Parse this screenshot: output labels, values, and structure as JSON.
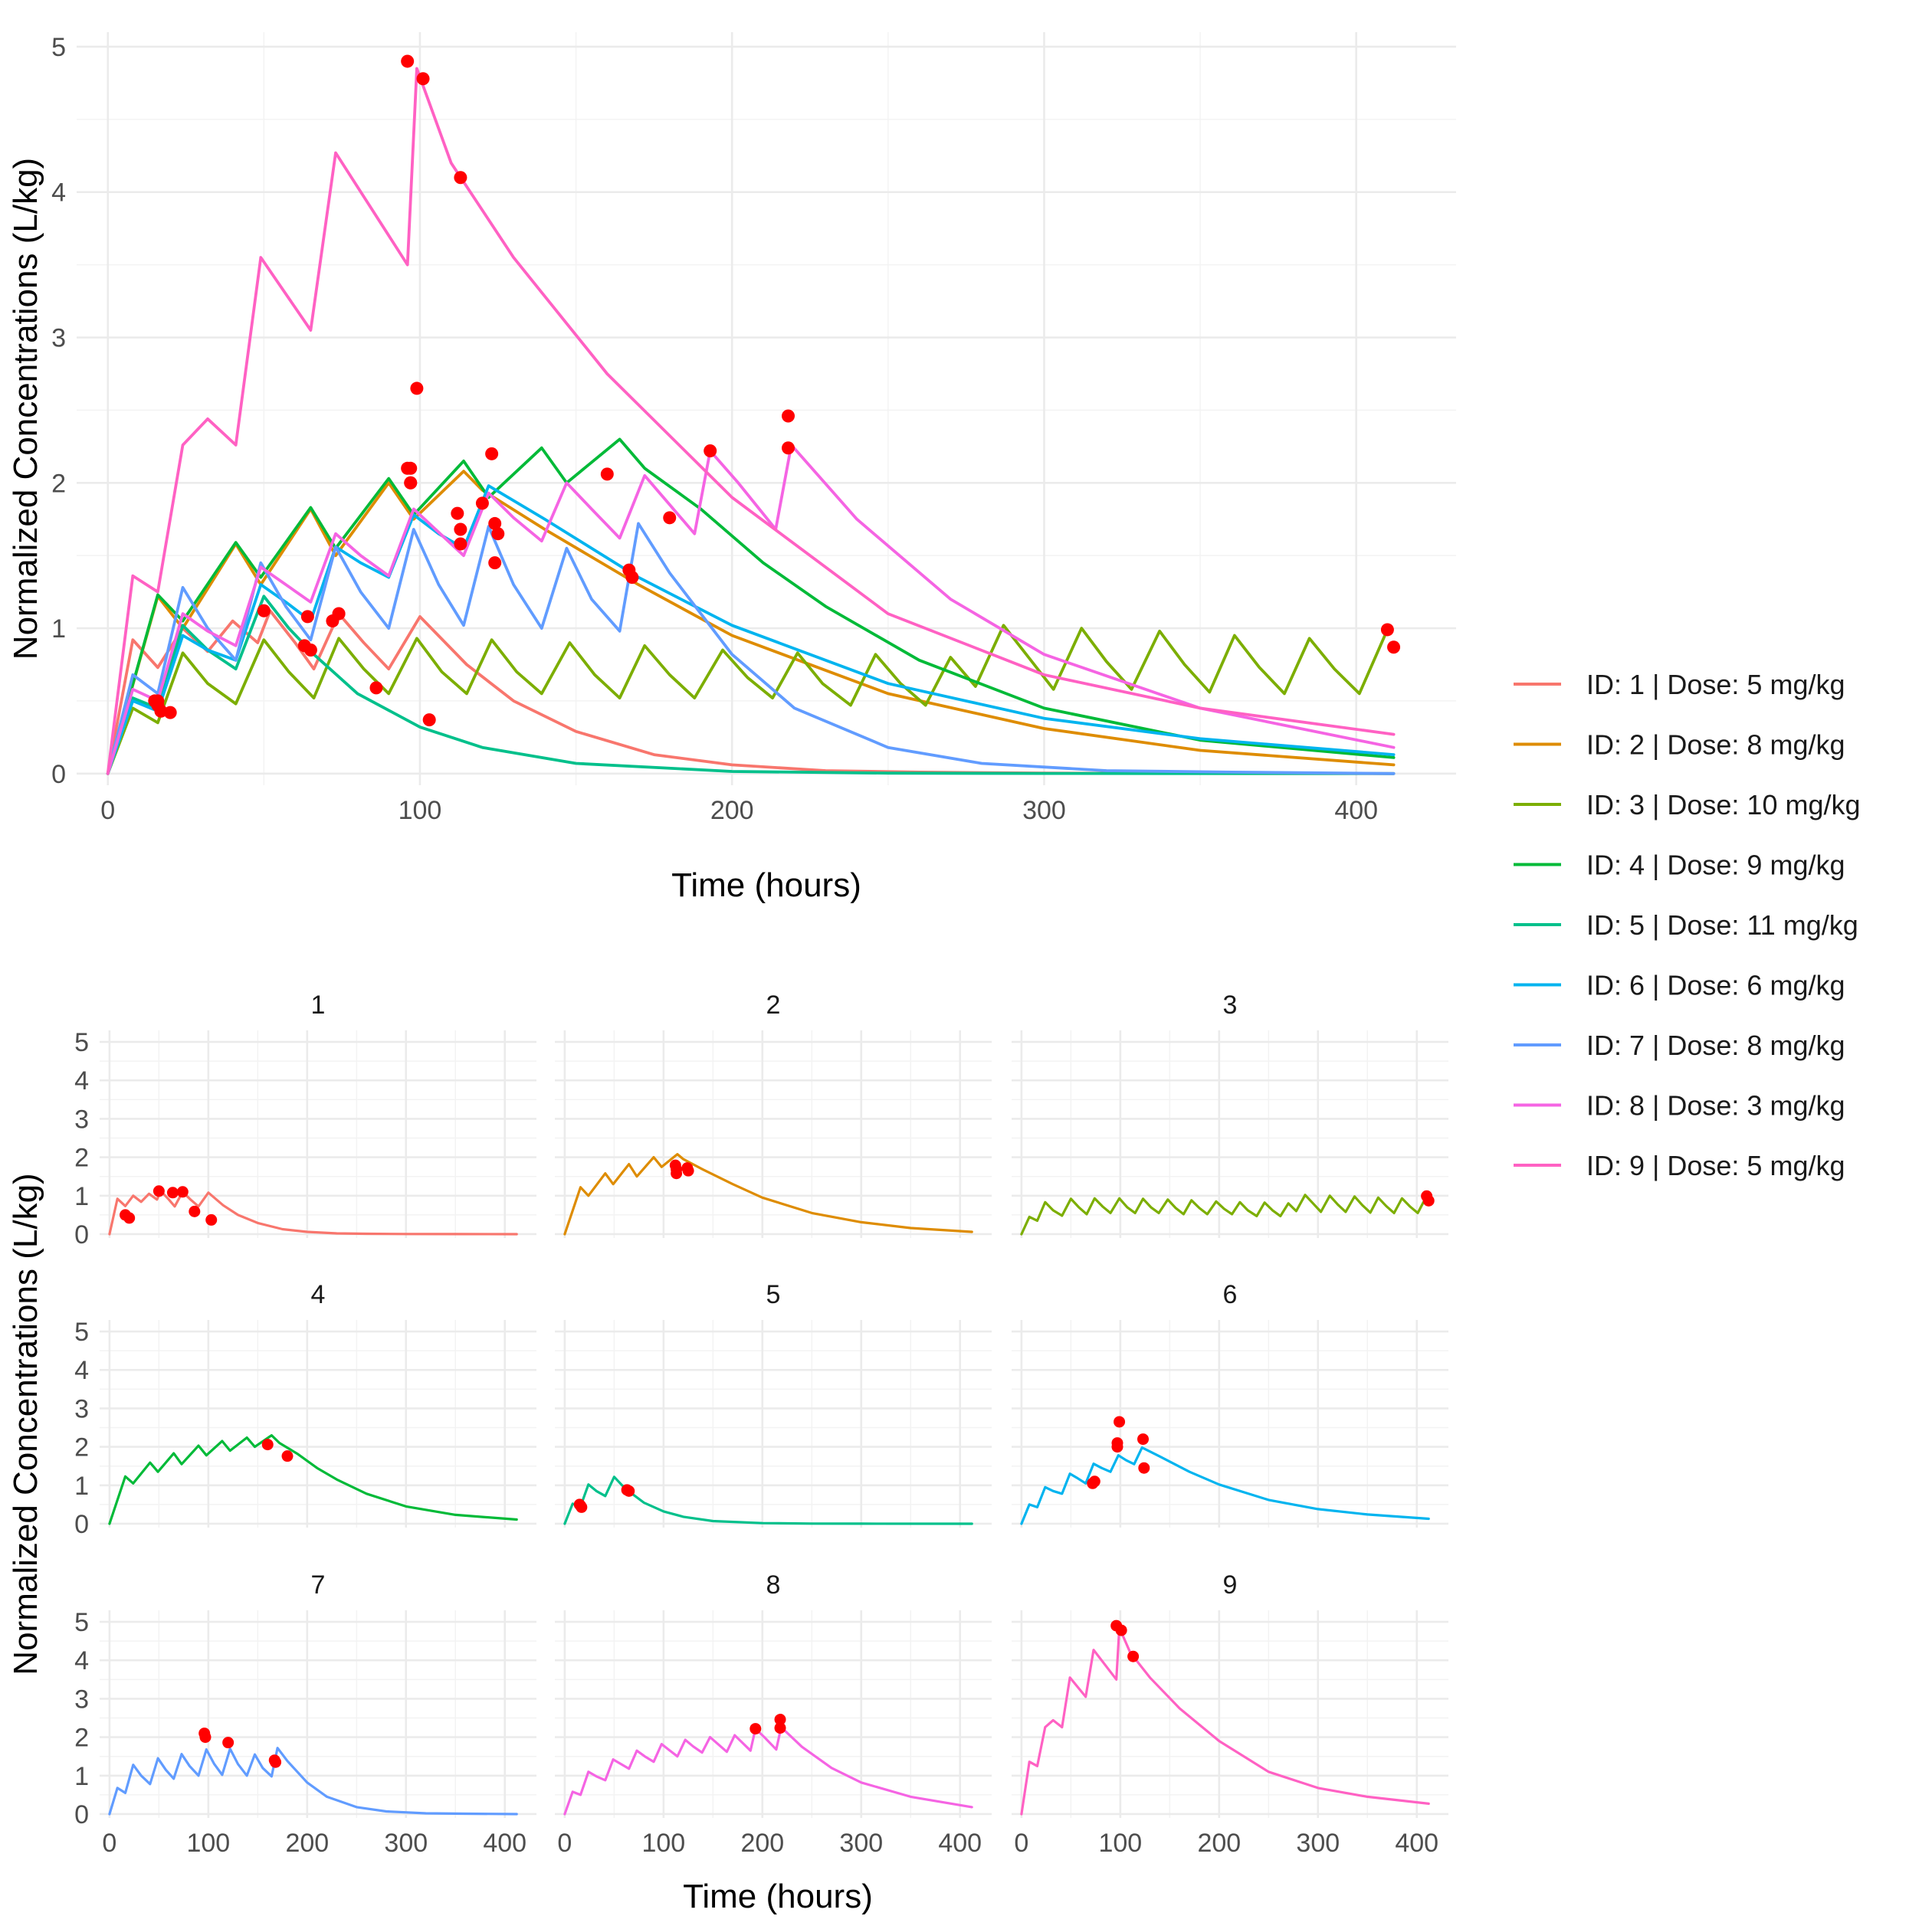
{
  "chart_data": {
    "type": "line",
    "description_free": true,
    "top_panel": {
      "xlabel": "Time (hours)",
      "ylabel": "Normalized Concentrations (L/kg)",
      "xlim": [
        -10,
        432
      ],
      "ylim": [
        -0.08,
        5.1
      ],
      "xticks": [
        0,
        100,
        200,
        300,
        400
      ],
      "yticks": [
        0,
        1,
        2,
        3,
        4,
        5
      ]
    },
    "facet_panels": {
      "xlabel": "Time (hours)",
      "ylabel": "Normalized Concentrations (L/kg)",
      "xlim": [
        -10,
        432
      ],
      "ylim": [
        -0.1,
        5.3
      ],
      "xticks": [
        0,
        100,
        200,
        300,
        400
      ],
      "yticks": [
        0,
        1,
        2,
        3,
        4,
        5
      ],
      "strip_labels": [
        "1",
        "2",
        "3",
        "4",
        "5",
        "6",
        "7",
        "8",
        "9"
      ]
    },
    "observed_point_color": "#FF0000",
    "series": [
      {
        "id": "1",
        "name": "ID: 1 | Dose: 5 mg/kg",
        "color": "#F8766D",
        "line": [
          [
            0,
            0
          ],
          [
            8,
            0.92
          ],
          [
            16,
            0.73
          ],
          [
            24,
            1.0
          ],
          [
            32,
            0.84
          ],
          [
            40,
            1.05
          ],
          [
            48,
            0.9
          ],
          [
            52,
            1.12
          ],
          [
            60,
            0.9
          ],
          [
            66,
            0.72
          ],
          [
            74,
            1.1
          ],
          [
            82,
            0.9
          ],
          [
            90,
            0.72
          ],
          [
            100,
            1.08
          ],
          [
            115,
            0.75
          ],
          [
            130,
            0.5
          ],
          [
            150,
            0.29
          ],
          [
            175,
            0.13
          ],
          [
            200,
            0.06
          ],
          [
            230,
            0.02
          ],
          [
            260,
            0.01
          ],
          [
            300,
            0.003
          ],
          [
            350,
            0.001
          ],
          [
            412,
            0.0
          ]
        ],
        "points": [
          [
            16,
            0.5
          ],
          [
            20,
            0.42
          ],
          [
            50,
            1.12
          ],
          [
            64,
            1.08
          ],
          [
            74,
            1.1
          ],
          [
            86,
            0.59
          ],
          [
            103,
            0.37
          ]
        ]
      },
      {
        "id": "2",
        "name": "ID: 2 | Dose: 8 mg/kg",
        "color": "#DE8C00",
        "line": [
          [
            0,
            0
          ],
          [
            16,
            1.22
          ],
          [
            24,
            1.0
          ],
          [
            41,
            1.58
          ],
          [
            49,
            1.3
          ],
          [
            65,
            1.82
          ],
          [
            73,
            1.5
          ],
          [
            90,
            2.0
          ],
          [
            98,
            1.75
          ],
          [
            114,
            2.08
          ],
          [
            120,
            1.95
          ],
          [
            140,
            1.68
          ],
          [
            170,
            1.3
          ],
          [
            200,
            0.95
          ],
          [
            250,
            0.55
          ],
          [
            300,
            0.31
          ],
          [
            350,
            0.16
          ],
          [
            412,
            0.06
          ]
        ],
        "points": [
          [
            112,
            1.79
          ],
          [
            113,
            1.68
          ],
          [
            113,
            1.58
          ],
          [
            124,
            1.72
          ],
          [
            125,
            1.65
          ]
        ]
      },
      {
        "id": "3",
        "name": "ID: 3 | Dose: 10 mg/kg",
        "color": "#7CAE00",
        "line": [
          [
            0,
            0
          ],
          [
            8,
            0.45
          ],
          [
            16,
            0.35
          ],
          [
            24,
            0.83
          ],
          [
            32,
            0.62
          ],
          [
            41,
            0.48
          ],
          [
            50,
            0.92
          ],
          [
            58,
            0.7
          ],
          [
            66,
            0.52
          ],
          [
            74,
            0.93
          ],
          [
            82,
            0.72
          ],
          [
            90,
            0.55
          ],
          [
            99,
            0.93
          ],
          [
            107,
            0.7
          ],
          [
            115,
            0.55
          ],
          [
            123,
            0.92
          ],
          [
            131,
            0.7
          ],
          [
            139,
            0.55
          ],
          [
            148,
            0.9
          ],
          [
            156,
            0.68
          ],
          [
            164,
            0.52
          ],
          [
            172,
            0.88
          ],
          [
            180,
            0.68
          ],
          [
            188,
            0.52
          ],
          [
            197,
            0.85
          ],
          [
            205,
            0.66
          ],
          [
            213,
            0.52
          ],
          [
            221,
            0.83
          ],
          [
            229,
            0.62
          ],
          [
            238,
            0.47
          ],
          [
            246,
            0.82
          ],
          [
            254,
            0.62
          ],
          [
            262,
            0.47
          ],
          [
            270,
            0.8
          ],
          [
            278,
            0.6
          ],
          [
            287,
            1.02
          ],
          [
            295,
            0.8
          ],
          [
            303,
            0.58
          ],
          [
            312,
            1.0
          ],
          [
            320,
            0.77
          ],
          [
            328,
            0.58
          ],
          [
            337,
            0.98
          ],
          [
            345,
            0.75
          ],
          [
            353,
            0.56
          ],
          [
            361,
            0.95
          ],
          [
            369,
            0.73
          ],
          [
            377,
            0.55
          ],
          [
            385,
            0.93
          ],
          [
            393,
            0.72
          ],
          [
            401,
            0.55
          ],
          [
            410,
            0.99
          ]
        ],
        "points": [
          [
            410,
            0.99
          ],
          [
            412,
            0.87
          ]
        ]
      },
      {
        "id": "4",
        "name": "ID: 4 | Dose: 9 mg/kg",
        "color": "#00BA38",
        "line": [
          [
            0,
            0
          ],
          [
            16,
            1.23
          ],
          [
            24,
            1.05
          ],
          [
            41,
            1.59
          ],
          [
            49,
            1.35
          ],
          [
            65,
            1.83
          ],
          [
            73,
            1.55
          ],
          [
            90,
            2.03
          ],
          [
            98,
            1.78
          ],
          [
            114,
            2.15
          ],
          [
            122,
            1.9
          ],
          [
            139,
            2.24
          ],
          [
            147,
            2.0
          ],
          [
            164,
            2.3
          ],
          [
            172,
            2.1
          ],
          [
            190,
            1.82
          ],
          [
            210,
            1.45
          ],
          [
            230,
            1.15
          ],
          [
            260,
            0.78
          ],
          [
            300,
            0.45
          ],
          [
            350,
            0.23
          ],
          [
            412,
            0.11
          ]
        ],
        "points": [
          [
            160,
            2.06
          ],
          [
            180,
            1.76
          ]
        ]
      },
      {
        "id": "5",
        "name": "ID: 5 | Dose: 11 mg/kg",
        "color": "#00C08B",
        "line": [
          [
            0,
            0
          ],
          [
            8,
            0.52
          ],
          [
            16,
            0.45
          ],
          [
            24,
            1.02
          ],
          [
            32,
            0.85
          ],
          [
            41,
            0.72
          ],
          [
            50,
            1.22
          ],
          [
            58,
            1.0
          ],
          [
            66,
            0.82
          ],
          [
            80,
            0.55
          ],
          [
            100,
            0.32
          ],
          [
            120,
            0.18
          ],
          [
            150,
            0.07
          ],
          [
            200,
            0.015
          ],
          [
            250,
            0.003
          ],
          [
            300,
            0.001
          ],
          [
            412,
            0.0
          ]
        ],
        "points": [
          [
            15,
            0.5
          ],
          [
            16,
            0.47
          ],
          [
            17,
            0.43
          ],
          [
            63,
            0.88
          ],
          [
            65,
            0.85
          ]
        ]
      },
      {
        "id": "6",
        "name": "ID: 6 | Dose: 6 mg/kg",
        "color": "#00B4EF",
        "line": [
          [
            0,
            0
          ],
          [
            8,
            0.5
          ],
          [
            16,
            0.43
          ],
          [
            24,
            0.95
          ],
          [
            32,
            0.85
          ],
          [
            41,
            0.78
          ],
          [
            49,
            1.3
          ],
          [
            57,
            1.18
          ],
          [
            65,
            1.05
          ],
          [
            73,
            1.56
          ],
          [
            81,
            1.45
          ],
          [
            90,
            1.35
          ],
          [
            98,
            1.78
          ],
          [
            106,
            1.65
          ],
          [
            114,
            1.55
          ],
          [
            122,
            1.98
          ],
          [
            140,
            1.75
          ],
          [
            170,
            1.35
          ],
          [
            200,
            1.02
          ],
          [
            250,
            0.62
          ],
          [
            300,
            0.38
          ],
          [
            350,
            0.24
          ],
          [
            412,
            0.13
          ]
        ],
        "points": [
          [
            72,
            1.05
          ],
          [
            74,
            1.1
          ],
          [
            99,
            2.65
          ],
          [
            97,
            2.1
          ],
          [
            97,
            2.0
          ],
          [
            123,
            2.2
          ],
          [
            124,
            1.45
          ]
        ]
      },
      {
        "id": "7",
        "name": "ID: 7 | Dose: 8 mg/kg",
        "color": "#619CFF",
        "line": [
          [
            0,
            0
          ],
          [
            8,
            0.68
          ],
          [
            16,
            0.55
          ],
          [
            24,
            1.28
          ],
          [
            32,
            1.0
          ],
          [
            41,
            0.78
          ],
          [
            49,
            1.45
          ],
          [
            57,
            1.15
          ],
          [
            65,
            0.92
          ],
          [
            73,
            1.56
          ],
          [
            81,
            1.25
          ],
          [
            90,
            1.0
          ],
          [
            98,
            1.68
          ],
          [
            106,
            1.3
          ],
          [
            114,
            1.02
          ],
          [
            122,
            1.7
          ],
          [
            130,
            1.3
          ],
          [
            139,
            1.0
          ],
          [
            147,
            1.55
          ],
          [
            155,
            1.2
          ],
          [
            164,
            0.98
          ],
          [
            170,
            1.72
          ],
          [
            180,
            1.38
          ],
          [
            200,
            0.82
          ],
          [
            220,
            0.45
          ],
          [
            250,
            0.18
          ],
          [
            280,
            0.07
          ],
          [
            320,
            0.02
          ],
          [
            360,
            0.01
          ],
          [
            412,
            0.0
          ]
        ],
        "points": [
          [
            96,
            2.1
          ],
          [
            97,
            2.0
          ],
          [
            120,
            1.86
          ],
          [
            167,
            1.4
          ],
          [
            168,
            1.35
          ]
        ]
      },
      {
        "id": "8",
        "name": "ID: 8 | Dose: 3 mg/kg",
        "color": "#F564E3",
        "line": [
          [
            0,
            0
          ],
          [
            8,
            0.58
          ],
          [
            16,
            0.5
          ],
          [
            24,
            1.1
          ],
          [
            32,
            0.98
          ],
          [
            41,
            0.88
          ],
          [
            49,
            1.42
          ],
          [
            57,
            1.3
          ],
          [
            65,
            1.18
          ],
          [
            73,
            1.65
          ],
          [
            81,
            1.5
          ],
          [
            90,
            1.36
          ],
          [
            98,
            1.82
          ],
          [
            106,
            1.66
          ],
          [
            114,
            1.5
          ],
          [
            122,
            1.93
          ],
          [
            130,
            1.76
          ],
          [
            139,
            1.6
          ],
          [
            147,
            2.0
          ],
          [
            155,
            1.82
          ],
          [
            164,
            1.62
          ],
          [
            172,
            2.05
          ],
          [
            180,
            1.85
          ],
          [
            188,
            1.65
          ],
          [
            193,
            2.22
          ],
          [
            202,
            2.0
          ],
          [
            214,
            1.68
          ],
          [
            219,
            2.26
          ],
          [
            240,
            1.75
          ],
          [
            270,
            1.2
          ],
          [
            300,
            0.82
          ],
          [
            350,
            0.45
          ],
          [
            412,
            0.18
          ]
        ],
        "points": [
          [
            193,
            2.22
          ],
          [
            218,
            2.46
          ],
          [
            218,
            2.24
          ]
        ]
      },
      {
        "id": "9",
        "name": "ID: 9 | Dose: 5 mg/kg",
        "color": "#FF61C3",
        "line": [
          [
            0,
            0
          ],
          [
            8,
            1.36
          ],
          [
            16,
            1.25
          ],
          [
            24,
            2.26
          ],
          [
            32,
            2.44
          ],
          [
            41,
            2.26
          ],
          [
            49,
            3.55
          ],
          [
            65,
            3.05
          ],
          [
            73,
            4.27
          ],
          [
            96,
            3.5
          ],
          [
            99,
            4.85
          ],
          [
            110,
            4.2
          ],
          [
            130,
            3.55
          ],
          [
            160,
            2.75
          ],
          [
            200,
            1.9
          ],
          [
            250,
            1.1
          ],
          [
            300,
            0.68
          ],
          [
            350,
            0.45
          ],
          [
            412,
            0.27
          ]
        ],
        "points": [
          [
            96,
            4.9
          ],
          [
            101,
            4.78
          ],
          [
            113,
            4.1
          ]
        ]
      }
    ]
  }
}
